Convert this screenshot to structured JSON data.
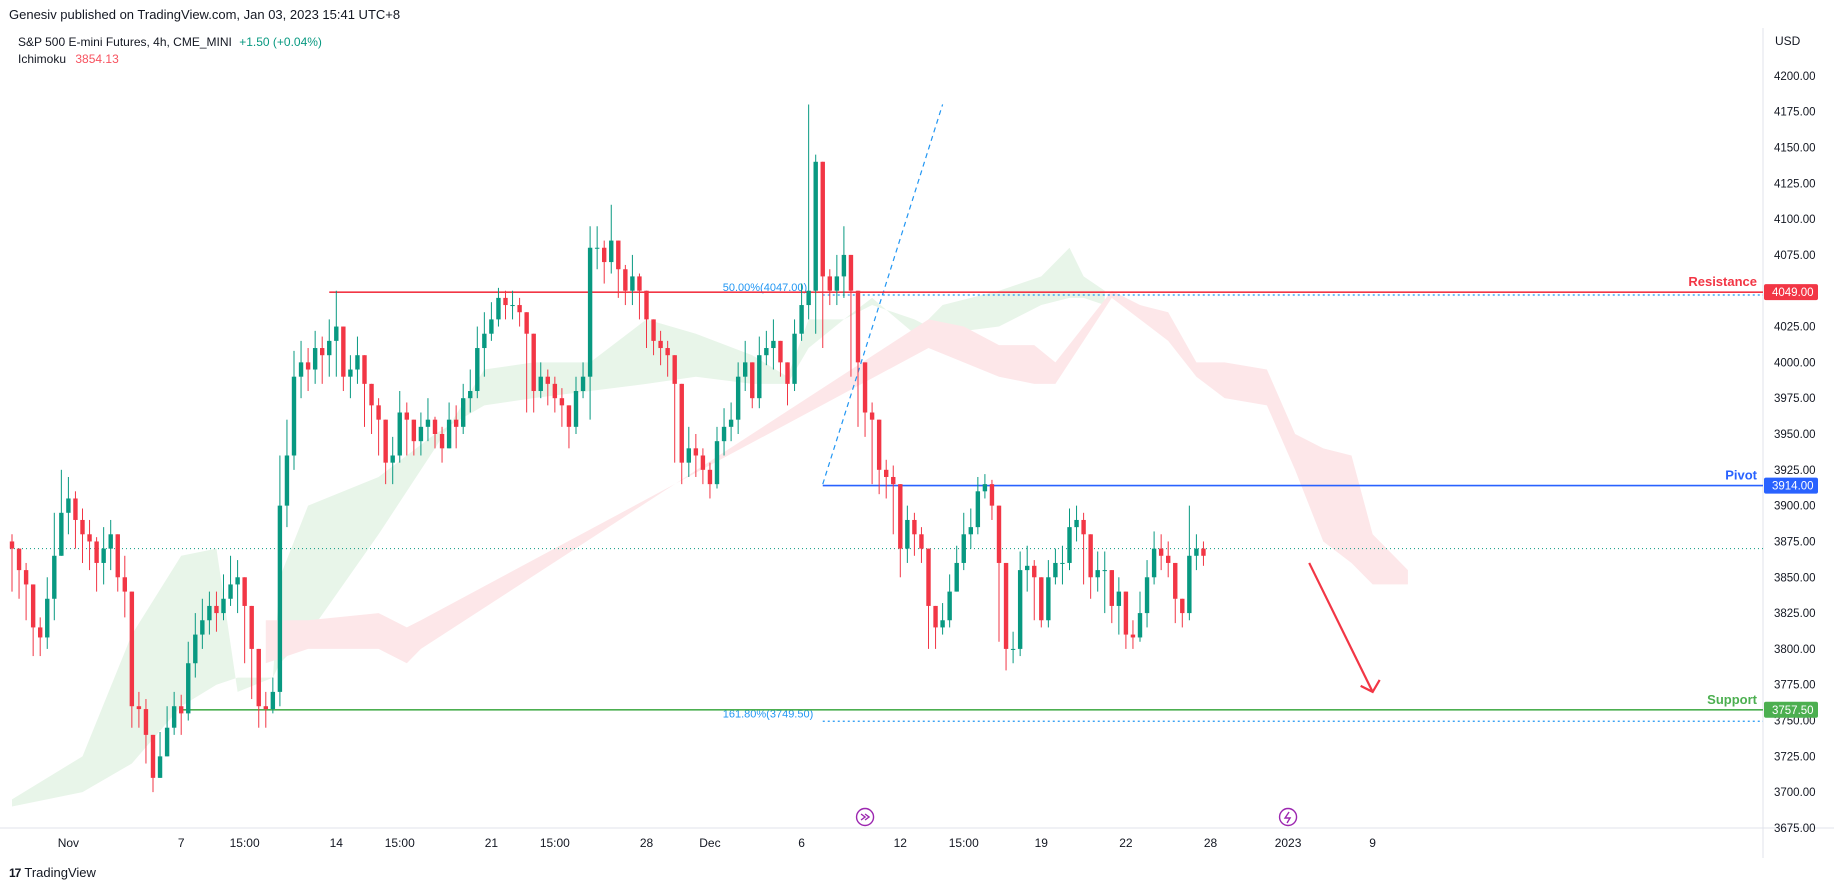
{
  "header": {
    "publisher": "Genesiv published on TradingView.com, Jan 03, 2023 15:41 UTC+8",
    "symbol": "S&P 500 E-mini Futures, 4h, CME_MINI",
    "change": "+1.50 (+0.04%)",
    "indicator_name": "Ichimoku",
    "indicator_value": "3854.13",
    "currency": "USD"
  },
  "footer": {
    "brand": "TradingView",
    "mark": "17"
  },
  "colors": {
    "up": "#089981",
    "down": "#f23645",
    "resistance": "#f23645",
    "pivot": "#2962ff",
    "support": "#4caf50",
    "cloud_bull": "#e8f5e9",
    "cloud_bear": "#fde7e9",
    "fib": "#2196f3"
  },
  "chart_data": {
    "type": "candlestick",
    "ylim": [
      3675,
      4225
    ],
    "y_ticks": [
      3675,
      3700,
      3725,
      3750,
      3775,
      3800,
      3825,
      3850,
      3875,
      3900,
      3925,
      3950,
      3975,
      4000,
      4025,
      4050,
      4075,
      4100,
      4125,
      4150,
      4175,
      4200
    ],
    "y_tick_labels": [
      "3675.00",
      "3700.00",
      "3725.00",
      "3750.00",
      "3775.00",
      "3800.00",
      "3825.00",
      "3850.00",
      "3875.00",
      "3900.00",
      "3925.00",
      "3950.00",
      "3975.00",
      "4000.00",
      "4025.00",
      "4050.00",
      "4075.00",
      "4100.00",
      "4125.00",
      "4150.00",
      "4175.00",
      "4200.00"
    ],
    "x_ticks": [
      {
        "label": "Nov",
        "i": 8
      },
      {
        "label": "7",
        "i": 24
      },
      {
        "label": "15:00",
        "i": 33
      },
      {
        "label": "14",
        "i": 46
      },
      {
        "label": "15:00",
        "i": 55
      },
      {
        "label": "21",
        "i": 68
      },
      {
        "label": "15:00",
        "i": 77
      },
      {
        "label": "28",
        "i": 90
      },
      {
        "label": "Dec",
        "i": 99
      },
      {
        "label": "6",
        "i": 112
      },
      {
        "label": "12",
        "i": 126
      },
      {
        "label": "15:00",
        "i": 135
      },
      {
        "label": "19",
        "i": 146
      },
      {
        "label": "22",
        "i": 158
      },
      {
        "label": "28",
        "i": 170
      },
      {
        "label": "2023",
        "i": 181
      },
      {
        "label": "9",
        "i": 193
      }
    ],
    "closes": [
      3870,
      3855,
      3845,
      3815,
      3808,
      3835,
      3865,
      3895,
      3905,
      3890,
      3880,
      3875,
      3860,
      3870,
      3880,
      3850,
      3840,
      3760,
      3758,
      3740,
      3710,
      3725,
      3745,
      3760,
      3755,
      3790,
      3810,
      3820,
      3830,
      3825,
      3835,
      3845,
      3850,
      3830,
      3800,
      3760,
      3758,
      3770,
      3900,
      3935,
      3990,
      4000,
      3995,
      4010,
      4005,
      4015,
      4025,
      3990,
      3995,
      4005,
      3985,
      3970,
      3960,
      3930,
      3935,
      3965,
      3960,
      3945,
      3955,
      3960,
      3950,
      3940,
      3960,
      3955,
      3975,
      3980,
      4010,
      4020,
      4030,
      4045,
      4040,
      4040,
      4035,
      4020,
      3980,
      3990,
      3985,
      3975,
      3970,
      3955,
      3980,
      3990,
      4080,
      4080,
      4070,
      4085,
      4065,
      4050,
      4060,
      4050,
      4030,
      4015,
      4010,
      4005,
      3985,
      3930,
      3940,
      3935,
      3925,
      3915,
      3945,
      3955,
      3960,
      3990,
      4000,
      3975,
      4005,
      4010,
      4015,
      4000,
      3985,
      4020,
      4040,
      4050,
      4140,
      4060,
      4050,
      4060,
      4075,
      4050,
      4000,
      3965,
      3960,
      3925,
      3920,
      3915,
      3870,
      3890,
      3880,
      3870,
      3830,
      3815,
      3820,
      3840,
      3860,
      3880,
      3885,
      3910,
      3915,
      3900,
      3860,
      3800,
      3800,
      3855,
      3858,
      3850,
      3820,
      3850,
      3860,
      3860,
      3885,
      3890,
      3880,
      3850,
      3855,
      3855,
      3830,
      3840,
      3810,
      3808,
      3825,
      3850,
      3870,
      3865,
      3860,
      3835,
      3825,
      3865,
      3870,
      3865
    ],
    "highs": [
      3880,
      3865,
      3860,
      3830,
      3822,
      3850,
      3895,
      3925,
      3920,
      3910,
      3898,
      3890,
      3878,
      3885,
      3890,
      3870,
      3865,
      3790,
      3770,
      3765,
      3735,
      3742,
      3760,
      3770,
      3768,
      3805,
      3825,
      3835,
      3840,
      3840,
      3852,
      3865,
      3862,
      3845,
      3815,
      3775,
      3770,
      3780,
      3935,
      3960,
      4008,
      4015,
      4010,
      4022,
      4018,
      4030,
      4050,
      4015,
      4005,
      4018,
      3998,
      3985,
      3975,
      3948,
      3948,
      3980,
      3972,
      3960,
      3965,
      3975,
      3962,
      3955,
      3972,
      3970,
      3985,
      3995,
      4025,
      4035,
      4042,
      4052,
      4050,
      4050,
      4045,
      4032,
      4000,
      4000,
      3995,
      3990,
      3982,
      3968,
      3990,
      4000,
      4095,
      4095,
      4085,
      4110,
      4080,
      4068,
      4075,
      4062,
      4040,
      4030,
      4022,
      4015,
      3998,
      3945,
      3955,
      3950,
      3940,
      3930,
      3955,
      3968,
      3972,
      4000,
      4015,
      3990,
      4018,
      4022,
      4030,
      4015,
      3995,
      4030,
      4055,
      4180,
      4145,
      4075,
      4065,
      4075,
      4095,
      4060,
      4015,
      3980,
      3972,
      3940,
      3932,
      3928,
      3890,
      3900,
      3895,
      3885,
      3845,
      3825,
      3832,
      3852,
      3872,
      3895,
      3898,
      3920,
      3922,
      3918,
      3880,
      3825,
      3812,
      3868,
      3872,
      3862,
      3835,
      3862,
      3870,
      3872,
      3898,
      3900,
      3895,
      3868,
      3868,
      3868,
      3845,
      3850,
      3825,
      3820,
      3840,
      3862,
      3882,
      3880,
      3875,
      3850,
      3835,
      3900,
      3880,
      3875
    ],
    "lows": [
      3840,
      3835,
      3820,
      3795,
      3795,
      3800,
      3820,
      3870,
      3880,
      3870,
      3860,
      3855,
      3840,
      3845,
      3855,
      3840,
      3822,
      3745,
      3745,
      3720,
      3700,
      3715,
      3725,
      3740,
      3740,
      3750,
      3780,
      3800,
      3810,
      3812,
      3820,
      3830,
      3825,
      3790,
      3765,
      3745,
      3745,
      3755,
      3760,
      3885,
      3925,
      3975,
      3980,
      3985,
      3985,
      3990,
      3990,
      3980,
      3975,
      3985,
      3955,
      3950,
      3935,
      3915,
      3915,
      3930,
      3935,
      3935,
      3935,
      3945,
      3940,
      3930,
      3940,
      3940,
      3950,
      3965,
      3975,
      3990,
      4015,
      4025,
      4030,
      4030,
      4025,
      3965,
      3965,
      3975,
      3970,
      3965,
      3955,
      3940,
      3950,
      3975,
      3960,
      4065,
      4055,
      4062,
      4045,
      4040,
      4040,
      4030,
      4010,
      4005,
      3998,
      3990,
      3930,
      3915,
      3920,
      3920,
      3915,
      3905,
      3912,
      3935,
      3945,
      3950,
      3980,
      3968,
      3968,
      3998,
      3995,
      3990,
      3970,
      3980,
      4015,
      4030,
      4020,
      4010,
      4040,
      4040,
      4045,
      3990,
      3955,
      3948,
      3915,
      3908,
      3905,
      3880,
      3850,
      3860,
      3865,
      3860,
      3800,
      3800,
      3810,
      3815,
      3840,
      3855,
      3870,
      3880,
      3905,
      3890,
      3805,
      3785,
      3790,
      3795,
      3840,
      3820,
      3815,
      3815,
      3845,
      3845,
      3855,
      3875,
      3845,
      3835,
      3840,
      3825,
      3818,
      3810,
      3800,
      3800,
      3805,
      3815,
      3845,
      3855,
      3850,
      3818,
      3815,
      3820,
      3855,
      3858
    ],
    "last_close_line": 3870,
    "horizontal_levels": [
      {
        "name": "Resistance",
        "label": "Resistance",
        "price": 4049,
        "price_label": "4049.00",
        "start_i": 45
      },
      {
        "name": "Pivot",
        "label": "Pivot",
        "price": 3914,
        "price_label": "3914.00",
        "start_i": 115
      },
      {
        "name": "Support",
        "label": "Support",
        "price": 3757.5,
        "price_label": "3757.50",
        "start_i": 24
      }
    ],
    "fib_levels": [
      {
        "label": "50.00%(4047.00)",
        "price": 4047,
        "start_i": 115
      },
      {
        "label": "161.80%(3749.50)",
        "price": 3749.5,
        "start_i": 115
      }
    ],
    "fib_line": {
      "from_i": 115,
      "from_price": 3915,
      "to_i": 132,
      "to_price": 4180
    },
    "arrow": {
      "from_i": 184,
      "from_price": 3860,
      "to_i": 193,
      "to_price": 3770
    },
    "event_markers": [
      {
        "icon": "forward-circle-icon",
        "i": 121
      },
      {
        "icon": "lightning-circle-icon",
        "i": 181
      }
    ],
    "cloud_bull": [
      [
        0,
        3690,
        3695
      ],
      [
        10,
        3700,
        3725
      ],
      [
        17,
        3720,
        3810
      ],
      [
        24,
        3760,
        3865
      ],
      [
        29,
        3775,
        3870
      ],
      [
        32,
        3780,
        3770
      ],
      [
        37,
        3780,
        3780
      ],
      [
        38,
        3850,
        3790
      ],
      [
        42,
        3900,
        3810
      ],
      [
        52,
        3920,
        3880
      ],
      [
        60,
        3950,
        3940
      ],
      [
        67,
        3970,
        3995
      ],
      [
        74,
        3975,
        4000
      ],
      [
        82,
        3980,
        4000
      ],
      [
        90,
        3985,
        4030
      ],
      [
        97,
        3990,
        4020
      ],
      [
        105,
        3985,
        4005
      ],
      [
        110,
        3985,
        3990
      ],
      [
        113,
        4010,
        4030
      ],
      [
        118,
        4030,
        4030
      ],
      [
        122,
        4040,
        4045
      ],
      [
        128,
        4030,
        4020
      ],
      [
        132,
        4020,
        4040
      ],
      [
        140,
        4025,
        4050
      ],
      [
        146,
        4040,
        4060
      ],
      [
        150,
        4045,
        4080
      ],
      [
        152,
        4045,
        4060
      ],
      [
        155,
        4040,
        4050
      ]
    ],
    "cloud_bear": [
      [
        36,
        3820,
        3790
      ],
      [
        42,
        3820,
        3800
      ],
      [
        52,
        3825,
        3800
      ],
      [
        56,
        3815,
        3790
      ],
      [
        58,
        3820,
        3800
      ],
      [
        130,
        4010,
        4030
      ],
      [
        135,
        4000,
        4025
      ],
      [
        140,
        3990,
        4012
      ],
      [
        145,
        3985,
        4012
      ],
      [
        148,
        3985,
        4000
      ],
      [
        156,
        4045,
        4050
      ],
      [
        160,
        4030,
        4040
      ],
      [
        164,
        4015,
        4035
      ],
      [
        168,
        3990,
        4000
      ],
      [
        172,
        3975,
        4000
      ],
      [
        178,
        3970,
        3995
      ],
      [
        182,
        3925,
        3950
      ],
      [
        186,
        3875,
        3940
      ],
      [
        190,
        3860,
        3935
      ],
      [
        193,
        3845,
        3880
      ],
      [
        198,
        3845,
        3855
      ]
    ]
  }
}
